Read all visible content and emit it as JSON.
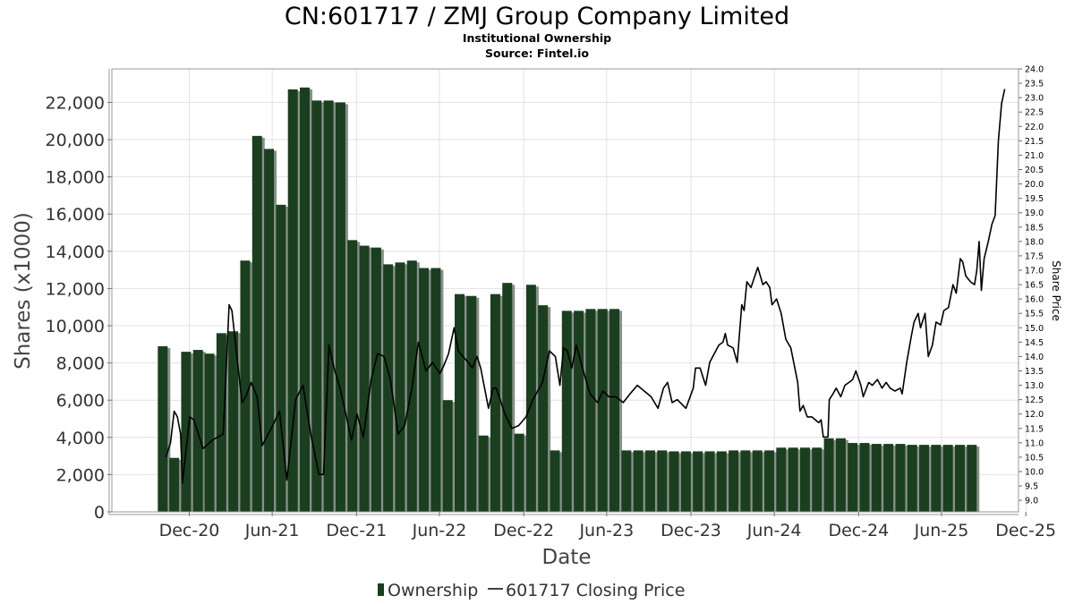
{
  "chart_data": {
    "type": "bar",
    "title": "CN:601717 / ZMJ Group Company Limited",
    "subtitle": "Institutional Ownership",
    "source": "Source: Fintel.io",
    "xlabel": "Date",
    "ylabel": "Shares (x1000)",
    "y2label": "Share Price",
    "ylim": [
      0,
      23800
    ],
    "y2lim": [
      8.6,
      24.0
    ],
    "yticks": [
      {
        "value": 0,
        "label": "0"
      },
      {
        "value": 2000,
        "label": "2,000"
      },
      {
        "value": 4000,
        "label": "4,000"
      },
      {
        "value": 6000,
        "label": "6,000"
      },
      {
        "value": 8000,
        "label": "8,000"
      },
      {
        "value": 10000,
        "label": "10,000"
      },
      {
        "value": 12000,
        "label": "12,000"
      },
      {
        "value": 14000,
        "label": "14,000"
      },
      {
        "value": 16000,
        "label": "16,000"
      },
      {
        "value": 18000,
        "label": "18,000"
      },
      {
        "value": 20000,
        "label": "20,000"
      },
      {
        "value": 22000,
        "label": "22,000"
      }
    ],
    "y2ticks": [
      "9.0",
      "9.5",
      "10.0",
      "10.5",
      "11.0",
      "11.5",
      "12.0",
      "12.5",
      "13.0",
      "13.5",
      "14.0",
      "14.5",
      "15.0",
      "15.5",
      "16.0",
      "16.5",
      "17.0",
      "17.5",
      "18.0",
      "18.5",
      "19.0",
      "19.5",
      "20.0",
      "20.5",
      "21.0",
      "21.5",
      "22.0",
      "22.5",
      "23.0",
      "23.5",
      "24.0"
    ],
    "xlim": [
      "2020-07-15",
      "2025-12-15"
    ],
    "xticks": [
      {
        "date": "2020-12-31",
        "label": "Dec-20"
      },
      {
        "date": "2021-06-30",
        "label": "Jun-21"
      },
      {
        "date": "2021-12-31",
        "label": "Dec-21"
      },
      {
        "date": "2022-06-30",
        "label": "Jun-22"
      },
      {
        "date": "2022-12-31",
        "label": "Dec-22"
      },
      {
        "date": "2023-06-30",
        "label": "Jun-23"
      },
      {
        "date": "2023-12-31",
        "label": "Dec-23"
      },
      {
        "date": "2024-06-30",
        "label": "Jun-24"
      },
      {
        "date": "2024-12-31",
        "label": "Dec-24"
      },
      {
        "date": "2025-06-30",
        "label": "Jun-25"
      },
      {
        "date": "2025-12-31",
        "label": "Dec-25"
      }
    ],
    "grid": true,
    "legend_position": "bottom-center",
    "colors": {
      "ownership": "#1a3f1f",
      "shadow": "#8a8f8a",
      "price": "#000000"
    },
    "series": [
      {
        "name": "Ownership",
        "type": "bar",
        "dates": [
          "2020-11-03",
          "2020-11-28",
          "2020-12-24",
          "2021-01-19",
          "2021-02-13",
          "2021-03-11",
          "2021-04-06",
          "2021-05-02",
          "2021-05-28",
          "2021-06-23",
          "2021-07-19",
          "2021-08-14",
          "2021-09-09",
          "2021-10-05",
          "2021-10-31",
          "2021-11-26",
          "2021-12-22",
          "2022-01-17",
          "2022-02-12",
          "2022-03-10",
          "2022-04-05",
          "2022-05-01",
          "2022-05-27",
          "2022-06-22",
          "2022-07-18",
          "2022-08-13",
          "2022-09-08",
          "2022-10-04",
          "2022-10-30",
          "2022-11-25",
          "2022-12-21",
          "2023-01-16",
          "2023-02-11",
          "2023-03-09",
          "2023-04-04",
          "2023-04-30",
          "2023-05-26",
          "2023-06-21",
          "2023-07-17",
          "2023-08-12",
          "2023-09-07",
          "2023-10-03",
          "2023-10-29",
          "2023-11-24",
          "2023-12-20",
          "2024-01-15",
          "2024-02-10",
          "2024-03-07",
          "2024-04-02",
          "2024-04-28",
          "2024-05-24",
          "2024-06-19",
          "2024-07-15",
          "2024-08-10",
          "2024-09-05",
          "2024-10-01",
          "2024-10-27",
          "2024-11-22",
          "2024-12-18",
          "2025-01-13",
          "2025-02-08",
          "2025-03-06",
          "2025-04-01",
          "2025-04-27",
          "2025-05-23",
          "2025-06-18",
          "2025-07-14",
          "2025-08-09",
          "2025-09-04"
        ],
        "values": [
          8900,
          2900,
          8600,
          8700,
          8500,
          9600,
          9700,
          13500,
          20200,
          19500,
          16500,
          22700,
          22800,
          22100,
          22100,
          22000,
          14600,
          14300,
          14200,
          13300,
          13400,
          13500,
          13100,
          13100,
          6000,
          11700,
          11600,
          4100,
          11700,
          12300,
          4200,
          12200,
          11100,
          3300,
          10800,
          10800,
          10900,
          10900,
          10900,
          3300,
          3300,
          3300,
          3300,
          3250,
          3250,
          3250,
          3250,
          3250,
          3300,
          3300,
          3300,
          3300,
          3450,
          3450,
          3450,
          3450,
          3950,
          3950,
          3700,
          3700,
          3650,
          3650,
          3650,
          3600,
          3600,
          3600,
          3600,
          3600,
          3600
        ]
      },
      {
        "name": "601717 Closing Price",
        "type": "line",
        "points": [
          [
            "2020-11-10",
            10.5
          ],
          [
            "2020-11-20",
            11.0
          ],
          [
            "2020-11-28",
            12.1
          ],
          [
            "2020-12-05",
            11.9
          ],
          [
            "2020-12-12",
            11.3
          ],
          [
            "2020-12-16",
            9.6
          ],
          [
            "2021-01-01",
            11.9
          ],
          [
            "2021-01-10",
            11.8
          ],
          [
            "2021-01-30",
            10.8
          ],
          [
            "2021-02-20",
            11.1
          ],
          [
            "2021-03-15",
            11.3
          ],
          [
            "2021-03-28",
            15.8
          ],
          [
            "2021-04-03",
            15.6
          ],
          [
            "2021-04-25",
            12.4
          ],
          [
            "2021-05-03",
            12.6
          ],
          [
            "2021-05-15",
            13.1
          ],
          [
            "2021-05-28",
            12.6
          ],
          [
            "2021-06-08",
            10.9
          ],
          [
            "2021-07-01",
            11.6
          ],
          [
            "2021-07-16",
            12.1
          ],
          [
            "2021-08-01",
            9.7
          ],
          [
            "2021-08-20",
            12.5
          ],
          [
            "2021-09-05",
            13.0
          ],
          [
            "2021-09-22",
            11.3
          ],
          [
            "2021-10-10",
            9.9
          ],
          [
            "2021-10-20",
            9.9
          ],
          [
            "2021-11-01",
            14.4
          ],
          [
            "2021-11-12",
            13.6
          ],
          [
            "2021-11-25",
            12.9
          ],
          [
            "2021-12-05",
            12.2
          ],
          [
            "2021-12-20",
            11.1
          ],
          [
            "2022-01-01",
            12.0
          ],
          [
            "2022-01-15",
            11.2
          ],
          [
            "2022-02-01",
            13.2
          ],
          [
            "2022-02-15",
            14.1
          ],
          [
            "2022-03-01",
            14.0
          ],
          [
            "2022-03-15",
            13.2
          ],
          [
            "2022-04-01",
            11.3
          ],
          [
            "2022-04-15",
            11.6
          ],
          [
            "2022-05-01",
            12.9
          ],
          [
            "2022-05-15",
            14.5
          ],
          [
            "2022-06-01",
            13.5
          ],
          [
            "2022-06-15",
            13.8
          ],
          [
            "2022-07-01",
            13.4
          ],
          [
            "2022-07-10",
            13.7
          ],
          [
            "2022-07-20",
            14.1
          ],
          [
            "2022-08-01",
            15.0
          ],
          [
            "2022-08-10",
            14.2
          ],
          [
            "2022-08-20",
            14.0
          ],
          [
            "2022-09-01",
            13.8
          ],
          [
            "2022-09-10",
            13.6
          ],
          [
            "2022-09-20",
            14.0
          ],
          [
            "2022-09-28",
            13.6
          ],
          [
            "2022-10-15",
            12.2
          ],
          [
            "2022-10-25",
            12.9
          ],
          [
            "2022-11-01",
            12.9
          ],
          [
            "2022-11-20",
            12.0
          ],
          [
            "2022-12-05",
            11.5
          ],
          [
            "2022-12-20",
            11.6
          ],
          [
            "2023-01-05",
            11.9
          ],
          [
            "2023-01-20",
            12.5
          ],
          [
            "2023-02-10",
            13.1
          ],
          [
            "2023-02-25",
            14.2
          ],
          [
            "2023-03-10",
            14.0
          ],
          [
            "2023-03-20",
            13.0
          ],
          [
            "2023-03-28",
            14.3
          ],
          [
            "2023-04-05",
            14.2
          ],
          [
            "2023-04-15",
            13.6
          ],
          [
            "2023-04-25",
            14.4
          ],
          [
            "2023-05-10",
            13.5
          ],
          [
            "2023-05-25",
            12.7
          ],
          [
            "2023-06-10",
            12.4
          ],
          [
            "2023-06-22",
            12.8
          ],
          [
            "2023-07-05",
            12.6
          ],
          [
            "2023-07-20",
            12.6
          ],
          [
            "2023-08-05",
            12.4
          ],
          [
            "2023-08-20",
            12.7
          ],
          [
            "2023-09-05",
            13.0
          ],
          [
            "2023-09-20",
            12.8
          ],
          [
            "2023-10-05",
            12.6
          ],
          [
            "2023-10-20",
            12.2
          ],
          [
            "2023-11-01",
            12.9
          ],
          [
            "2023-11-10",
            13.1
          ],
          [
            "2023-11-20",
            12.4
          ],
          [
            "2023-12-01",
            12.5
          ],
          [
            "2023-12-20",
            12.2
          ],
          [
            "2024-01-05",
            12.9
          ],
          [
            "2024-01-10",
            13.6
          ],
          [
            "2024-01-20",
            13.6
          ],
          [
            "2024-02-01",
            13.0
          ],
          [
            "2024-02-10",
            13.8
          ],
          [
            "2024-02-20",
            14.1
          ],
          [
            "2024-03-01",
            14.4
          ],
          [
            "2024-03-10",
            14.5
          ],
          [
            "2024-03-15",
            14.8
          ],
          [
            "2024-03-20",
            14.4
          ],
          [
            "2024-04-01",
            14.3
          ],
          [
            "2024-04-10",
            13.8
          ],
          [
            "2024-04-20",
            15.8
          ],
          [
            "2024-04-25",
            15.6
          ],
          [
            "2024-05-01",
            16.6
          ],
          [
            "2024-05-10",
            16.4
          ],
          [
            "2024-05-25",
            17.1
          ],
          [
            "2024-06-05",
            16.5
          ],
          [
            "2024-06-12",
            16.6
          ],
          [
            "2024-06-20",
            16.4
          ],
          [
            "2024-06-25",
            15.8
          ],
          [
            "2024-07-05",
            16.0
          ],
          [
            "2024-07-15",
            15.5
          ],
          [
            "2024-07-25",
            14.6
          ],
          [
            "2024-08-05",
            14.3
          ],
          [
            "2024-08-20",
            13.1
          ],
          [
            "2024-08-25",
            12.1
          ],
          [
            "2024-09-01",
            12.3
          ],
          [
            "2024-09-10",
            11.9
          ],
          [
            "2024-09-20",
            11.9
          ],
          [
            "2024-10-05",
            11.7
          ],
          [
            "2024-10-10",
            11.8
          ],
          [
            "2024-10-15",
            11.2
          ],
          [
            "2024-10-25",
            11.2
          ],
          [
            "2024-10-28",
            12.5
          ],
          [
            "2024-11-05",
            12.7
          ],
          [
            "2024-11-12",
            12.9
          ],
          [
            "2024-11-22",
            12.6
          ],
          [
            "2024-12-01",
            13.0
          ],
          [
            "2024-12-10",
            13.1
          ],
          [
            "2024-12-18",
            13.2
          ],
          [
            "2024-12-25",
            13.5
          ],
          [
            "2025-01-05",
            13.0
          ],
          [
            "2025-01-10",
            12.6
          ],
          [
            "2025-01-22",
            13.1
          ],
          [
            "2025-01-30",
            13.0
          ],
          [
            "2025-02-10",
            13.2
          ],
          [
            "2025-02-20",
            12.9
          ],
          [
            "2025-03-01",
            13.1
          ],
          [
            "2025-03-10",
            12.9
          ],
          [
            "2025-03-20",
            12.8
          ],
          [
            "2025-04-01",
            12.9
          ],
          [
            "2025-04-05",
            12.7
          ],
          [
            "2025-04-15",
            13.8
          ],
          [
            "2025-04-25",
            14.7
          ],
          [
            "2025-05-01",
            15.2
          ],
          [
            "2025-05-10",
            15.5
          ],
          [
            "2025-05-15",
            15.0
          ],
          [
            "2025-05-25",
            15.5
          ],
          [
            "2025-06-01",
            14.0
          ],
          [
            "2025-06-10",
            14.4
          ],
          [
            "2025-06-18",
            15.2
          ],
          [
            "2025-06-28",
            15.1
          ],
          [
            "2025-07-05",
            15.6
          ],
          [
            "2025-07-15",
            15.7
          ],
          [
            "2025-07-25",
            16.5
          ],
          [
            "2025-08-01",
            16.2
          ],
          [
            "2025-08-10",
            17.4
          ],
          [
            "2025-08-15",
            17.3
          ],
          [
            "2025-08-22",
            16.8
          ],
          [
            "2025-09-01",
            16.6
          ],
          [
            "2025-09-10",
            16.5
          ],
          [
            "2025-09-15",
            17.0
          ],
          [
            "2025-09-20",
            18.0
          ],
          [
            "2025-09-25",
            16.3
          ],
          [
            "2025-10-01",
            17.4
          ],
          [
            "2025-10-10",
            18.0
          ],
          [
            "2025-10-18",
            18.6
          ],
          [
            "2025-10-25",
            18.9
          ],
          [
            "2025-11-01",
            21.5
          ],
          [
            "2025-11-08",
            22.8
          ],
          [
            "2025-11-15",
            23.3
          ]
        ]
      }
    ]
  },
  "legend": {
    "items": [
      {
        "label": "Ownership"
      },
      {
        "label": "601717 Closing Price"
      }
    ]
  }
}
